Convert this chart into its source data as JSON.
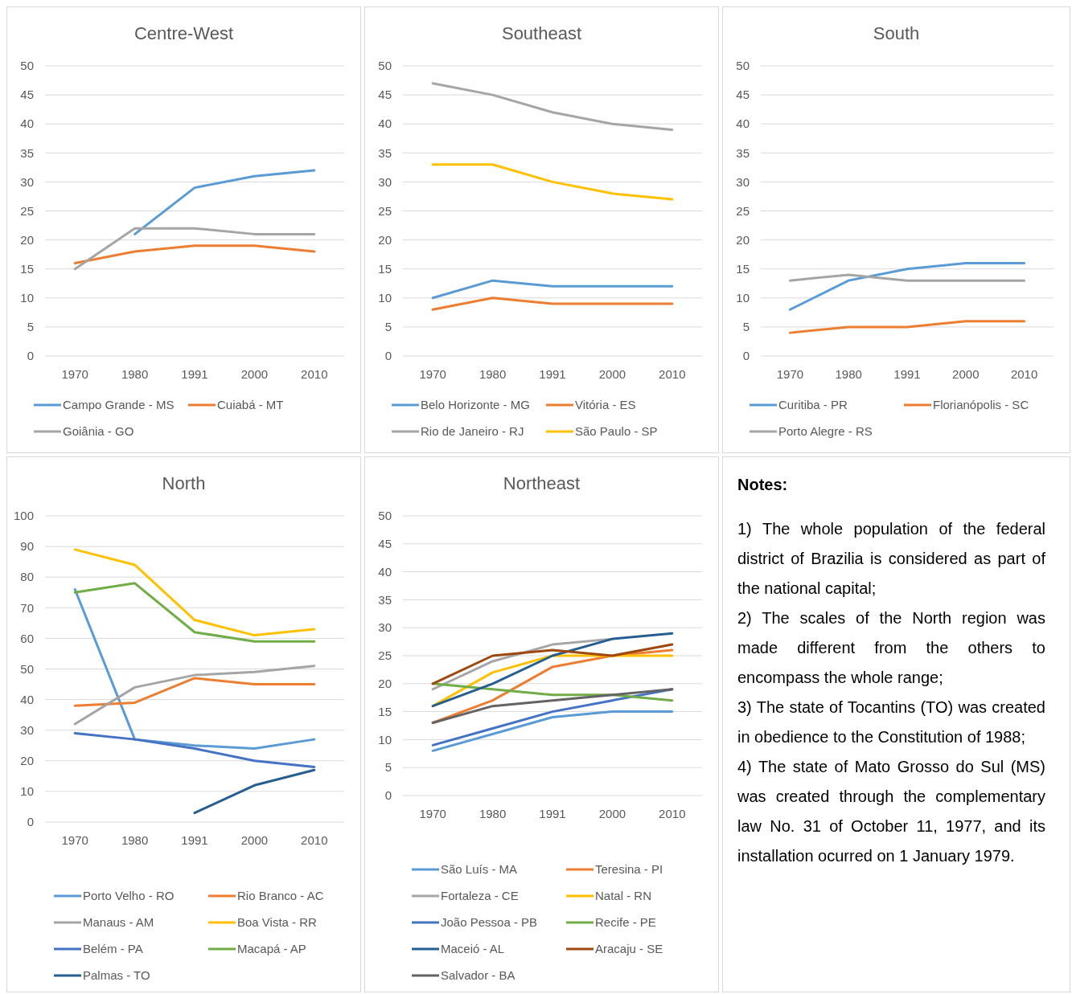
{
  "chart_data": [
    {
      "type": "line",
      "title": "Centre-West",
      "categories": [
        "1970",
        "1980",
        "1991",
        "2000",
        "2010"
      ],
      "ylim": [
        0,
        50
      ],
      "yticks": [
        0,
        5,
        10,
        15,
        20,
        25,
        30,
        35,
        40,
        45,
        50
      ],
      "grid": "y",
      "legend": "bottom",
      "series": [
        {
          "name": "Campo Grande - MS",
          "color": "#5b9bd5",
          "values": [
            null,
            21,
            29,
            31,
            32
          ]
        },
        {
          "name": "Cuiabá - MT",
          "color": "#ed7d31",
          "values": [
            16,
            18,
            19,
            19,
            18
          ]
        },
        {
          "name": "Goiânia - GO",
          "color": "#a5a5a5",
          "values": [
            15,
            22,
            22,
            21,
            21
          ]
        }
      ]
    },
    {
      "type": "line",
      "title": "Southeast",
      "categories": [
        "1970",
        "1980",
        "1991",
        "2000",
        "2010"
      ],
      "ylim": [
        0,
        50
      ],
      "yticks": [
        0,
        5,
        10,
        15,
        20,
        25,
        30,
        35,
        40,
        45,
        50
      ],
      "grid": "y",
      "legend": "bottom",
      "series": [
        {
          "name": "Belo Horizonte - MG",
          "color": "#5b9bd5",
          "values": [
            10,
            13,
            12,
            12,
            12
          ]
        },
        {
          "name": "Vitória - ES",
          "color": "#ed7d31",
          "values": [
            8,
            10,
            9,
            9,
            9
          ]
        },
        {
          "name": "Rio de Janeiro - RJ",
          "color": "#a5a5a5",
          "values": [
            47,
            45,
            42,
            40,
            39
          ]
        },
        {
          "name": "São Paulo - SP",
          "color": "#ffc000",
          "values": [
            33,
            33,
            30,
            28,
            27
          ]
        }
      ]
    },
    {
      "type": "line",
      "title": "South",
      "categories": [
        "1970",
        "1980",
        "1991",
        "2000",
        "2010"
      ],
      "ylim": [
        0,
        50
      ],
      "yticks": [
        0,
        5,
        10,
        15,
        20,
        25,
        30,
        35,
        40,
        45,
        50
      ],
      "grid": "y",
      "legend": "bottom",
      "series": [
        {
          "name": "Curitiba - PR",
          "color": "#5b9bd5",
          "values": [
            8,
            13,
            15,
            16,
            16
          ]
        },
        {
          "name": "Florianópolis - SC",
          "color": "#ed7d31",
          "values": [
            4,
            5,
            5,
            6,
            6
          ]
        },
        {
          "name": "Porto Alegre - RS",
          "color": "#a5a5a5",
          "values": [
            13,
            14,
            13,
            13,
            13
          ]
        }
      ]
    },
    {
      "type": "line",
      "title": "North",
      "categories": [
        "1970",
        "1980",
        "1991",
        "2000",
        "2010"
      ],
      "ylim": [
        0,
        100
      ],
      "yticks": [
        0,
        10,
        20,
        30,
        40,
        50,
        60,
        70,
        80,
        90,
        100
      ],
      "grid": "y",
      "legend": "bottom",
      "series": [
        {
          "name": "Porto Velho - RO",
          "color": "#5b9bd5",
          "values": [
            76,
            27,
            25,
            24,
            27
          ]
        },
        {
          "name": "Rio Branco - AC",
          "color": "#ed7d31",
          "values": [
            38,
            39,
            47,
            45,
            45
          ]
        },
        {
          "name": "Manaus - AM",
          "color": "#a5a5a5",
          "values": [
            32,
            44,
            48,
            49,
            51
          ]
        },
        {
          "name": "Boa Vista - RR",
          "color": "#ffc000",
          "values": [
            89,
            84,
            66,
            61,
            63
          ]
        },
        {
          "name": "Belém - PA",
          "color": "#4472c4",
          "values": [
            29,
            27,
            24,
            20,
            18
          ]
        },
        {
          "name": "Macapá - AP",
          "color": "#70ad47",
          "values": [
            75,
            78,
            62,
            59,
            59
          ]
        },
        {
          "name": "Palmas - TO",
          "color": "#255e91",
          "values": [
            null,
            null,
            3,
            12,
            17
          ]
        }
      ]
    },
    {
      "type": "line",
      "title": "Northeast",
      "categories": [
        "1970",
        "1980",
        "1991",
        "2000",
        "2010"
      ],
      "ylim": [
        0,
        50
      ],
      "yticks": [
        0,
        5,
        10,
        15,
        20,
        25,
        30,
        35,
        40,
        45,
        50
      ],
      "grid": "y",
      "legend": "bottom",
      "series": [
        {
          "name": "São Luís - MA",
          "color": "#5b9bd5",
          "values": [
            8,
            11,
            14,
            15,
            15
          ]
        },
        {
          "name": "Teresina - PI",
          "color": "#ed7d31",
          "values": [
            13,
            17,
            23,
            25,
            26
          ]
        },
        {
          "name": "Fortaleza - CE",
          "color": "#a5a5a5",
          "values": [
            19,
            24,
            27,
            28,
            null
          ]
        },
        {
          "name": "Natal - RN",
          "color": "#ffc000",
          "values": [
            16,
            22,
            25,
            25,
            25
          ]
        },
        {
          "name": "João Pessoa - PB",
          "color": "#4472c4",
          "values": [
            9,
            12,
            15,
            17,
            19
          ]
        },
        {
          "name": "Recife - PE",
          "color": "#70ad47",
          "values": [
            20,
            19,
            18,
            18,
            17
          ]
        },
        {
          "name": "Maceió - AL",
          "color": "#255e91",
          "values": [
            16,
            20,
            25,
            28,
            29
          ]
        },
        {
          "name": "Aracaju - SE",
          "color": "#9e480e",
          "values": [
            20,
            25,
            26,
            25,
            27
          ]
        },
        {
          "name": "Salvador - BA",
          "color": "#636363",
          "values": [
            13,
            16,
            17,
            18,
            19
          ]
        }
      ]
    },
    {
      "type": "other",
      "title": "Notes:",
      "annotations": [
        "1) The whole population of the federal district of Brazilia is considered as part of the national capital;",
        "2) The scales of the North region was made different from the others to encompass the whole range;",
        "3) The state of Tocantins (TO) was created in obedience to the Constitution of 1988;",
        "4) The state of Mato Grosso do Sul (MS) was created through the complementary law No. 31 of October 11, 1977, and its installation ocurred on 1 January 1979."
      ]
    }
  ]
}
